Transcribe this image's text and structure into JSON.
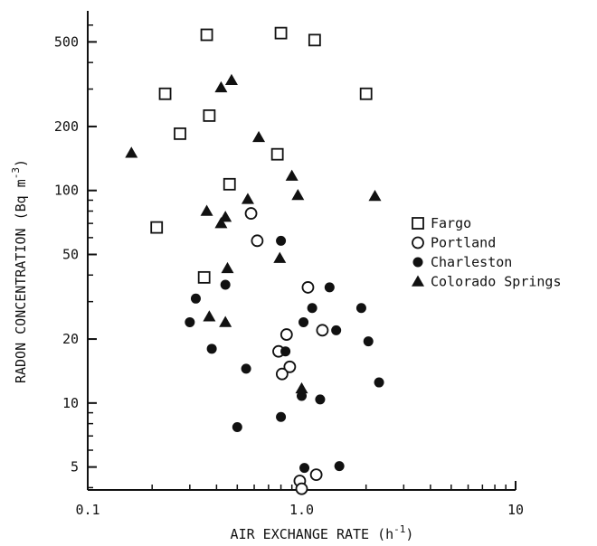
{
  "chart_data": {
    "type": "scatter",
    "x_scale": "log",
    "y_scale": "log",
    "xlim": [
      0.1,
      10
    ],
    "ylim": [
      3.9,
      700
    ],
    "x_ticks": [
      {
        "value": 0.1,
        "label": "0.1"
      },
      {
        "value": 1.0,
        "label": "1.0"
      },
      {
        "value": 10,
        "label": "10"
      }
    ],
    "y_ticks": [
      {
        "value": 5,
        "label": "5"
      },
      {
        "value": 10,
        "label": "10"
      },
      {
        "value": 20,
        "label": "20"
      },
      {
        "value": 50,
        "label": "50"
      },
      {
        "value": 100,
        "label": "100"
      },
      {
        "value": 200,
        "label": "200"
      },
      {
        "value": 500,
        "label": "500"
      }
    ],
    "xlabel": {
      "main": "AIR EXCHANGE RATE (h",
      "sup": "-1",
      "end": ")"
    },
    "ylabel": {
      "main": "RADON CONCENTRATION (Bq m",
      "sup": "-3",
      "end": ")"
    },
    "grid": false,
    "legend_position": "right",
    "series": [
      {
        "name": "Fargo",
        "marker": "open-square",
        "points": [
          {
            "x": 0.36,
            "y": 540
          },
          {
            "x": 0.8,
            "y": 550
          },
          {
            "x": 1.15,
            "y": 510
          },
          {
            "x": 0.23,
            "y": 285
          },
          {
            "x": 2.0,
            "y": 285
          },
          {
            "x": 0.37,
            "y": 225
          },
          {
            "x": 0.27,
            "y": 185
          },
          {
            "x": 0.77,
            "y": 148
          },
          {
            "x": 0.46,
            "y": 107
          },
          {
            "x": 0.21,
            "y": 67
          },
          {
            "x": 0.35,
            "y": 39
          }
        ]
      },
      {
        "name": "Portland",
        "marker": "open-circle",
        "points": [
          {
            "x": 0.58,
            "y": 78
          },
          {
            "x": 0.62,
            "y": 58
          },
          {
            "x": 1.07,
            "y": 35
          },
          {
            "x": 1.25,
            "y": 22
          },
          {
            "x": 0.85,
            "y": 21
          },
          {
            "x": 0.78,
            "y": 17.5
          },
          {
            "x": 0.88,
            "y": 14.8
          },
          {
            "x": 0.81,
            "y": 13.7
          },
          {
            "x": 1.17,
            "y": 4.6
          },
          {
            "x": 0.98,
            "y": 4.3
          },
          {
            "x": 1.0,
            "y": 3.95
          }
        ]
      },
      {
        "name": "Charleston",
        "marker": "filled-circle",
        "points": [
          {
            "x": 0.8,
            "y": 58
          },
          {
            "x": 0.44,
            "y": 36
          },
          {
            "x": 1.35,
            "y": 35
          },
          {
            "x": 0.32,
            "y": 31
          },
          {
            "x": 1.12,
            "y": 28
          },
          {
            "x": 1.9,
            "y": 28
          },
          {
            "x": 0.3,
            "y": 24
          },
          {
            "x": 1.02,
            "y": 24
          },
          {
            "x": 1.45,
            "y": 22
          },
          {
            "x": 2.05,
            "y": 19.5
          },
          {
            "x": 0.38,
            "y": 18
          },
          {
            "x": 0.84,
            "y": 17.5
          },
          {
            "x": 0.55,
            "y": 14.5
          },
          {
            "x": 2.3,
            "y": 12.5
          },
          {
            "x": 1.0,
            "y": 10.8
          },
          {
            "x": 1.22,
            "y": 10.4
          },
          {
            "x": 0.8,
            "y": 8.6
          },
          {
            "x": 0.5,
            "y": 7.7
          },
          {
            "x": 1.03,
            "y": 4.95
          },
          {
            "x": 1.5,
            "y": 5.05
          }
        ]
      },
      {
        "name": "Colorado Springs",
        "marker": "filled-triangle",
        "points": [
          {
            "x": 0.47,
            "y": 330
          },
          {
            "x": 0.42,
            "y": 305
          },
          {
            "x": 0.63,
            "y": 178
          },
          {
            "x": 0.16,
            "y": 150
          },
          {
            "x": 0.9,
            "y": 117
          },
          {
            "x": 0.96,
            "y": 95
          },
          {
            "x": 2.2,
            "y": 94
          },
          {
            "x": 0.56,
            "y": 91
          },
          {
            "x": 0.36,
            "y": 80
          },
          {
            "x": 0.44,
            "y": 75
          },
          {
            "x": 0.42,
            "y": 70
          },
          {
            "x": 0.79,
            "y": 48
          },
          {
            "x": 0.45,
            "y": 43
          },
          {
            "x": 0.37,
            "y": 25.5
          },
          {
            "x": 0.44,
            "y": 24
          },
          {
            "x": 1.0,
            "y": 11.7
          }
        ]
      }
    ]
  }
}
